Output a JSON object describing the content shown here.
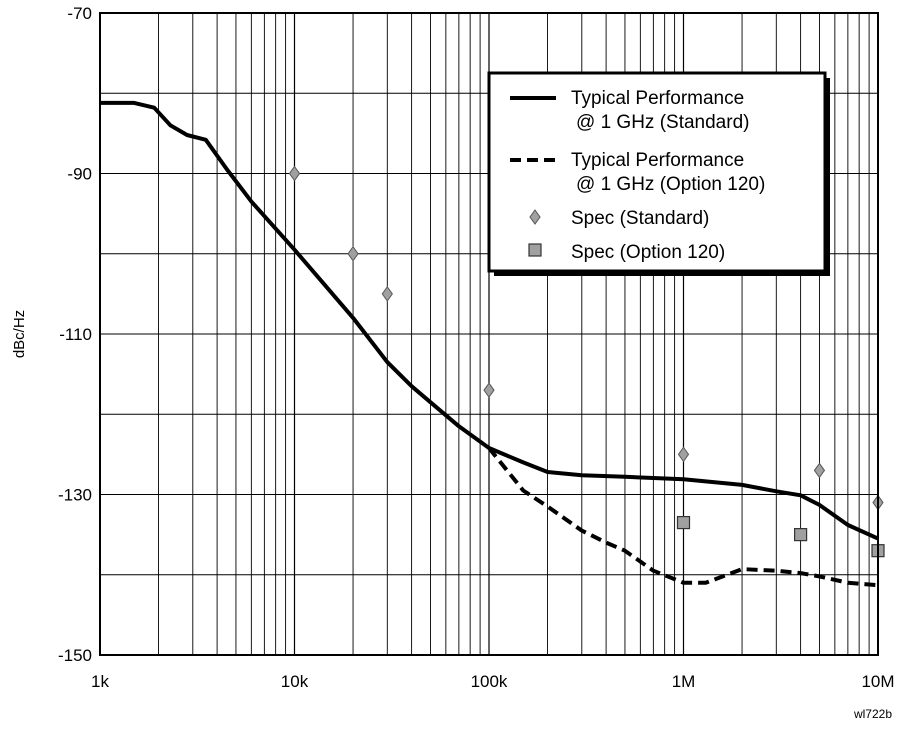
{
  "chart_data": {
    "type": "line",
    "xscale": "log",
    "xlim": [
      1000,
      10000000
    ],
    "ylim": [
      -150,
      -70
    ],
    "grid": true,
    "ylabel": "dBc/Hz",
    "xlabel": "",
    "x_ticks": [
      {
        "value": 1000,
        "label": "1k"
      },
      {
        "value": 10000,
        "label": "10k"
      },
      {
        "value": 100000,
        "label": "100k"
      },
      {
        "value": 1000000,
        "label": "1M"
      },
      {
        "value": 10000000,
        "label": "10M"
      }
    ],
    "y_ticks": [
      {
        "value": -70,
        "label": "-70"
      },
      {
        "value": -90,
        "label": "-90"
      },
      {
        "value": -110,
        "label": "-110"
      },
      {
        "value": -130,
        "label": "-130"
      },
      {
        "value": -150,
        "label": "-150"
      }
    ],
    "legend_position": "top-right",
    "series": [
      {
        "name": "Typical Performance @ 1 GHz (Standard)",
        "legend_lines": [
          "Typical Performance",
          "@ 1 GHz (Standard)"
        ],
        "style": "solid",
        "x": [
          1000,
          1500,
          1900,
          2300,
          2800,
          3500,
          4500,
          6000,
          10000,
          20000,
          30000,
          40000,
          50000,
          70000,
          100000,
          150000,
          200000,
          300000,
          500000,
          1000000,
          2000000,
          3000000,
          4000000,
          5000000,
          7000000,
          10000000
        ],
        "y": [
          -81.2,
          -81.2,
          -81.8,
          -84.0,
          -85.2,
          -85.8,
          -89.5,
          -93.5,
          -99.5,
          -108.0,
          -113.5,
          -116.5,
          -118.5,
          -121.5,
          -124.2,
          -126.0,
          -127.2,
          -127.6,
          -127.8,
          -128.1,
          -128.8,
          -129.6,
          -130.1,
          -131.3,
          -133.8,
          -135.5
        ]
      },
      {
        "name": "Typical Performance @ 1 GHz (Option 120)",
        "legend_lines": [
          "Typical Performance",
          "@ 1 GHz (Option 120)"
        ],
        "style": "dashed",
        "x": [
          100000,
          150000,
          200000,
          300000,
          400000,
          500000,
          700000,
          1000000,
          1300000,
          2000000,
          3000000,
          4000000,
          5000000,
          7000000,
          10000000
        ],
        "y": [
          -124.2,
          -129.5,
          -131.5,
          -134.5,
          -136.0,
          -137.0,
          -139.5,
          -141.0,
          -141.0,
          -139.3,
          -139.5,
          -139.8,
          -140.2,
          -141.0,
          -141.3
        ]
      },
      {
        "name": "Spec (Standard)",
        "legend_lines": [
          "Spec (Standard)"
        ],
        "style": "diamond-marker",
        "x": [
          10000,
          20000,
          30000,
          100000,
          1000000,
          5000000,
          10000000
        ],
        "y": [
          -90,
          -100,
          -105,
          -117,
          -125,
          -127,
          -131
        ]
      },
      {
        "name": "Spec (Option 120)",
        "legend_lines": [
          "Spec (Option 120)"
        ],
        "style": "square-marker",
        "x": [
          1000000,
          4000000,
          10000000
        ],
        "y": [
          -133.5,
          -135,
          -137
        ]
      }
    ],
    "footnote": "wl722b"
  },
  "colors": {
    "line": "#000000",
    "grid": "#000000",
    "marker_fill": "#a0a0a0",
    "background": "#ffffff"
  }
}
